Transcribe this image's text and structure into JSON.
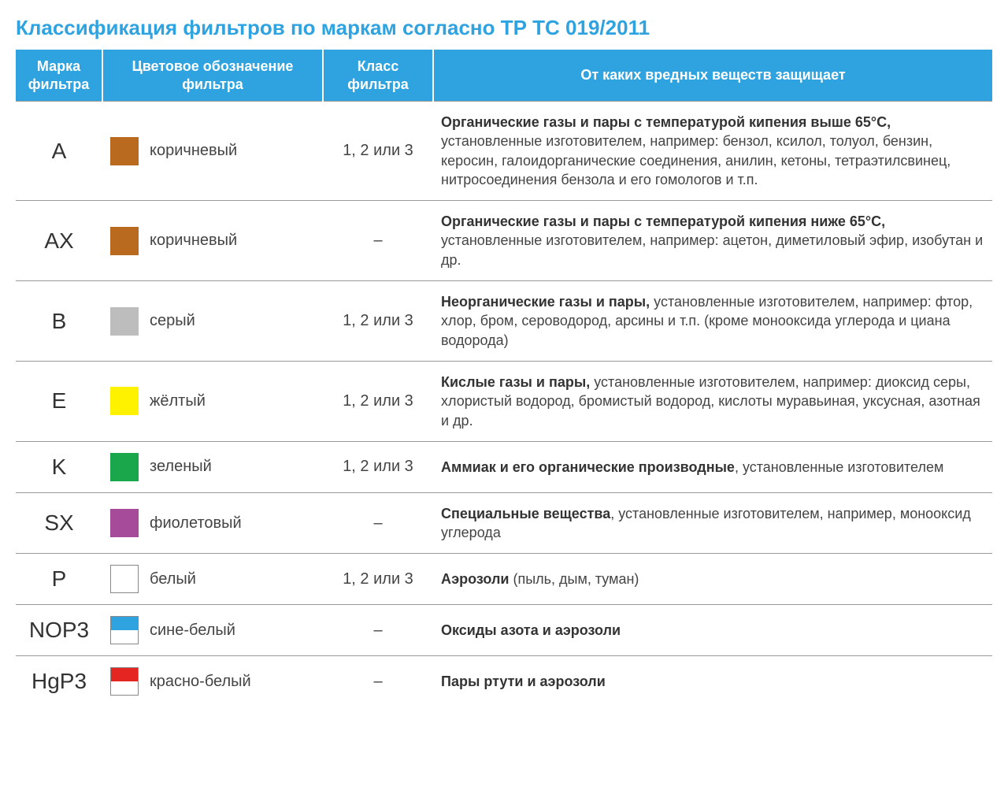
{
  "title": "Классификация фильтров по маркам согласно ТР ТС 019/2011",
  "colors": {
    "title": "#2ea3e0",
    "header_bg": "#2ea3e0",
    "header_text": "#ffffff",
    "border": "#999999",
    "text": "#444444",
    "bold_text": "#333333"
  },
  "headers": {
    "col1": "Марка фильтра",
    "col2": "Цветовое обозначение фильтра",
    "col3": "Класс фильтра",
    "col4": "От каких вредных веществ защищает"
  },
  "rows": [
    {
      "mark": "A",
      "color_name": "коричневый",
      "swatch": {
        "type": "solid",
        "fill": "#b96a1f"
      },
      "class": "1, 2 или 3",
      "desc_bold": "Органические газы и пары с температурой кипения выше 65°C,",
      "desc_rest": " установленные изготовителем, например: бензол, ксилол, толуол, бензин, керосин, галоидорганические соединения, анилин, кетоны, тетраэтилсвинец, нитросоединения бензола и его гомологов и т.п."
    },
    {
      "mark": "AX",
      "color_name": "коричневый",
      "swatch": {
        "type": "solid",
        "fill": "#b96a1f"
      },
      "class": "–",
      "desc_bold": "Органические газы и пары с температурой кипения ниже 65°C,",
      "desc_rest": " установленные изготовителем, например: ацетон, диметиловый эфир, изобутан и др."
    },
    {
      "mark": "B",
      "color_name": "серый",
      "swatch": {
        "type": "solid",
        "fill": "#bdbdbd"
      },
      "class": "1, 2 или 3",
      "desc_bold": "Неорганические газы и пары,",
      "desc_rest": " установленные изготовителем, например:  фтор, хлор, бром, сероводород, арсины и т.п. (кроме монооксида углерода и циана водорода)"
    },
    {
      "mark": "E",
      "color_name": "жёлтый",
      "swatch": {
        "type": "solid",
        "fill": "#fff200"
      },
      "class": "1, 2 или 3",
      "desc_bold": "Кислые газы и пары,",
      "desc_rest": " установленные изготовителем, например: диоксид серы, хлористый водород, бромистый водород, кислоты муравьиная, уксусная, азотная и др."
    },
    {
      "mark": "K",
      "color_name": "зеленый",
      "swatch": {
        "type": "solid",
        "fill": "#1aa64a"
      },
      "class": "1, 2 или 3",
      "desc_bold": "Аммиак и его органические производные",
      "desc_rest": ", установленные изготовителем"
    },
    {
      "mark": "SX",
      "color_name": "фиолетовый",
      "swatch": {
        "type": "solid",
        "fill": "#a64a9a"
      },
      "class": "–",
      "desc_bold": "Специальные вещества",
      "desc_rest": ", установленные  изготовителем, например, монооксид углерода"
    },
    {
      "mark": "P",
      "color_name": "белый",
      "swatch": {
        "type": "solid_bordered",
        "fill": "#ffffff"
      },
      "class": "1, 2 или 3",
      "desc_bold": "Аэрозоли",
      "desc_rest": " (пыль, дым, туман)"
    },
    {
      "mark": "NOP3",
      "color_name": "сине-белый",
      "swatch": {
        "type": "split",
        "top": "#2ea3e0",
        "bottom": "#ffffff"
      },
      "class": "–",
      "desc_bold": "Оксиды азота и аэрозоли",
      "desc_rest": ""
    },
    {
      "mark": "HgP3",
      "color_name": "красно-белый",
      "swatch": {
        "type": "split",
        "top": "#e52521",
        "bottom": "#ffffff"
      },
      "class": "–",
      "desc_bold": "Пары ртути и аэрозоли",
      "desc_rest": ""
    }
  ]
}
